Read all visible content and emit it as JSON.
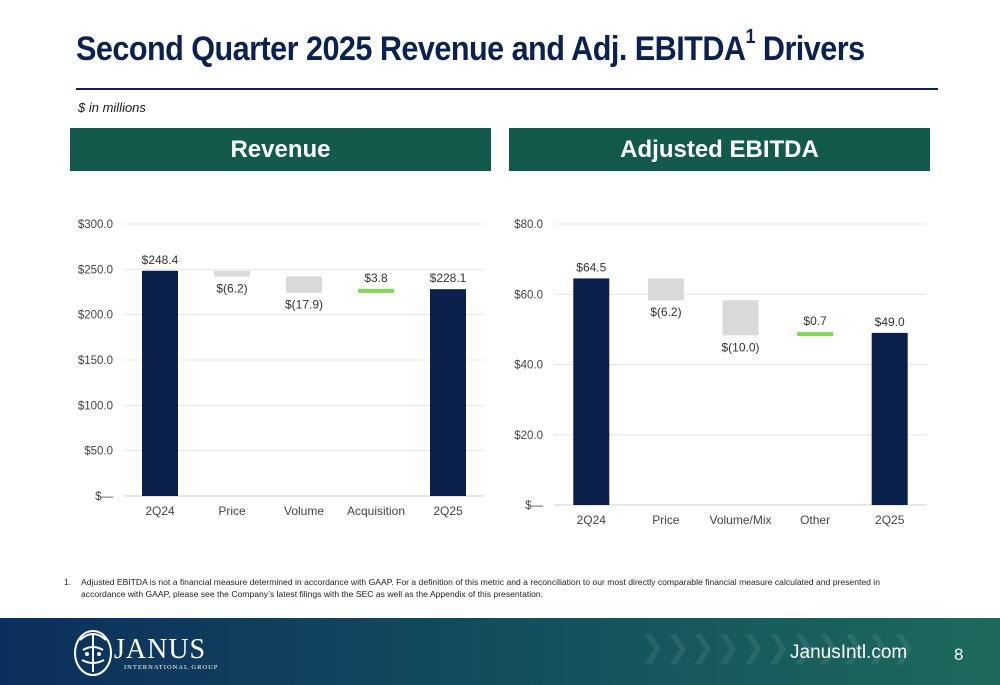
{
  "title": "Second Quarter 2025 Revenue and Adj. EBITDA",
  "title_sup": "1",
  "title_tail": " Drivers",
  "subtitle": "$ in millions",
  "colors": {
    "navy": "#0b1f4b",
    "grey": "#d9d9d9",
    "green": "#7ed957",
    "header": "#135a4c",
    "grid": "#e6e6e6",
    "axis_text": "#444444"
  },
  "chart_data": [
    {
      "type": "bar",
      "subtype": "waterfall",
      "title": "Revenue",
      "categories": [
        "2Q24",
        "Price",
        "Volume",
        "Acquisition",
        "2Q25"
      ],
      "values": [
        248.4,
        -6.2,
        -17.9,
        3.8,
        228.1
      ],
      "bar_kind": [
        "total",
        "delta",
        "delta",
        "delta",
        "total"
      ],
      "data_labels": [
        "$248.4",
        "$(6.2)",
        "$(17.9)",
        "$3.8",
        "$228.1"
      ],
      "ylim": [
        0,
        300
      ],
      "yticks": [
        0,
        50,
        100,
        150,
        200,
        250,
        300
      ],
      "ytick_labels": [
        "$—",
        "$50.0",
        "$100.0",
        "$150.0",
        "$200.0",
        "$250.0",
        "$300.0"
      ],
      "grid": true
    },
    {
      "type": "bar",
      "subtype": "waterfall",
      "title": "Adjusted EBITDA",
      "categories": [
        "2Q24",
        "Price",
        "Volume/Mix",
        "Other",
        "2Q25"
      ],
      "values": [
        64.5,
        -6.2,
        -10.0,
        0.7,
        49.0
      ],
      "bar_kind": [
        "total",
        "delta",
        "delta",
        "delta",
        "total"
      ],
      "data_labels": [
        "$64.5",
        "$(6.2)",
        "$(10.0)",
        "$0.7",
        "$49.0"
      ],
      "ylim": [
        0,
        80
      ],
      "yticks": [
        0,
        20,
        40,
        60,
        80
      ],
      "ytick_labels": [
        "$—",
        "$20.0",
        "$40.0",
        "$60.0",
        "$80.0"
      ],
      "grid": true
    }
  ],
  "footnote": {
    "number": "1.",
    "text": "Adjusted EBITDA is not a financial measure determined in accordance with GAAP. For a definition of this metric and a reconciliation to our most directly comparable financial measure calculated and presented in accordance with GAAP, please see the Company’s latest filings with the SEC as well as the Appendix of this presentation."
  },
  "footer": {
    "brand": "JANUS",
    "brand_sub": "INTERNATIONAL GROUP",
    "website": "JanusIntl.com",
    "page_number": "8"
  }
}
